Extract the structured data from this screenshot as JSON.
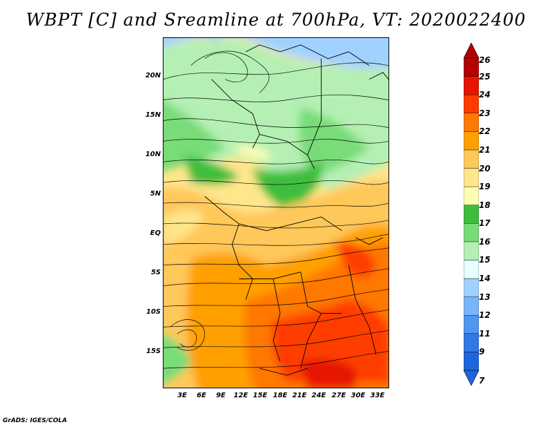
{
  "title": "WBPT [C] and Sreamline at 700hPa, VT: 2020022400",
  "credit": "GrADS: IGES/COLA",
  "lat_labels": [
    "20N",
    "15N",
    "10N",
    "5N",
    "EQ",
    "5S",
    "10S",
    "15S"
  ],
  "lon_labels": [
    "3E",
    "6E",
    "9E",
    "12E",
    "15E",
    "18E",
    "21E",
    "24E",
    "27E",
    "30E",
    "33E"
  ],
  "colorbar": {
    "levels": [
      "7",
      "9",
      "11",
      "12",
      "13",
      "14",
      "15",
      "16",
      "17",
      "18",
      "19",
      "20",
      "21",
      "22",
      "23",
      "24",
      "25",
      "26"
    ],
    "colors": [
      "#1e64dc",
      "#3278e6",
      "#5096f0",
      "#78b4fa",
      "#a0d2ff",
      "#e6ffff",
      "#b4f0b4",
      "#78dc78",
      "#3cbe3c",
      "#ffffb4",
      "#ffe68c",
      "#ffc85a",
      "#ffa000",
      "#ff7800",
      "#ff3c00",
      "#e61400",
      "#b40000"
    ]
  }
}
